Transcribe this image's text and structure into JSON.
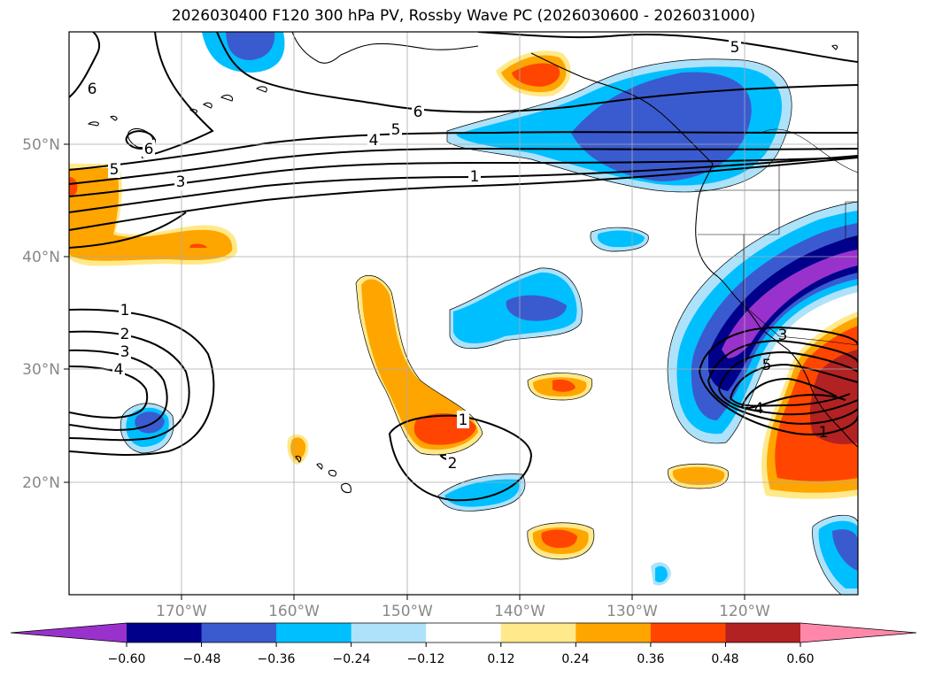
{
  "title": "2026030400 F120 300 hPa PV, Rossby Wave PC (2026030600 - 2026031000)",
  "axes": {
    "lat_labels": [
      "50°N",
      "40°N",
      "30°N",
      "20°N"
    ],
    "lon_labels": [
      "170°W",
      "160°W",
      "150°W",
      "140°W",
      "130°W",
      "120°W"
    ]
  },
  "colorbar": {
    "ticks": [
      "−0.60",
      "−0.48",
      "−0.36",
      "−0.24",
      "−0.12",
      "0.12",
      "0.24",
      "0.36",
      "0.48",
      "0.60"
    ],
    "colors": [
      "#9932cc",
      "#00008b",
      "#3a5bd0",
      "#00bfff",
      "#aee2fb",
      "#ffffff",
      "#ffe98a",
      "#ffa500",
      "#ff4500",
      "#b22222",
      "#ff88aa"
    ]
  },
  "contour_labels": [
    "6",
    "6",
    "5",
    "6",
    "5",
    "4",
    "5",
    "3",
    "1",
    "1",
    "2",
    "3",
    "4",
    "1",
    "2",
    "3",
    "4",
    "5",
    "1"
  ]
}
